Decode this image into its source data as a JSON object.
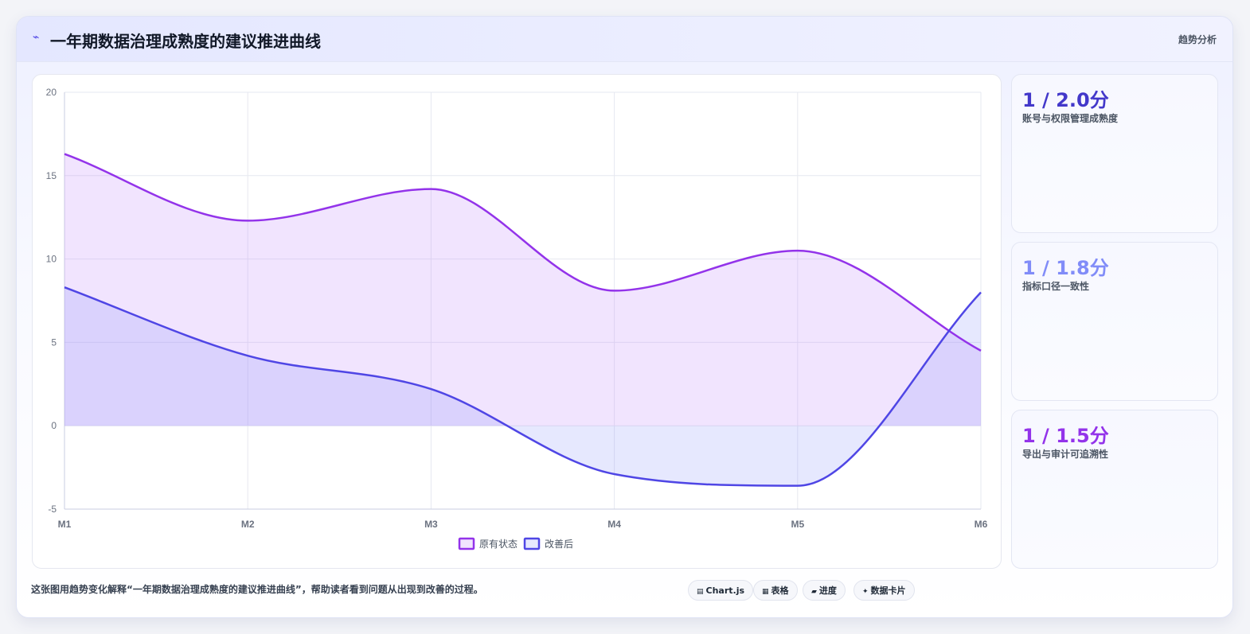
{
  "header": {
    "icon": "lightning-icon",
    "title": "一年期数据治理成熟度的建议推进曲线",
    "tag": "趋势分析"
  },
  "kpis": [
    {
      "value": "1 / 2.0分",
      "label": "账号与权限管理成熟度",
      "color": "#4338ca"
    },
    {
      "value": "1 / 1.8分",
      "label": "指标口径一致性",
      "color": "#818cf8"
    },
    {
      "value": "1 / 1.5分",
      "label": "导出与审计可追溯性",
      "color": "#9333ea"
    }
  ],
  "footer": {
    "description": "这张图用趋势变化解释“一年期数据治理成熟度的建议推进曲线”，帮助读者看到问题从出现到改善的过程。",
    "chips": [
      {
        "icon": "chart-icon",
        "glyph": "▤",
        "label": "Chart.js"
      },
      {
        "icon": "table-icon",
        "glyph": "▦",
        "label": "表格"
      },
      {
        "icon": "progress-icon",
        "glyph": "▰",
        "label": "进度"
      },
      {
        "icon": "sparkle-icon",
        "glyph": "✦",
        "label": "数据卡片"
      }
    ]
  },
  "chart_data": {
    "type": "area",
    "categories": [
      "M1",
      "M2",
      "M3",
      "M4",
      "M5",
      "M6"
    ],
    "series": [
      {
        "name": "原有状态",
        "values": [
          16.3,
          12.3,
          14.2,
          8.1,
          10.5,
          4.5
        ],
        "color": "#9333ea",
        "fill": "rgba(192,132,252,0.22)"
      },
      {
        "name": "改善后",
        "values": [
          8.3,
          4.2,
          2.2,
          -2.9,
          -3.6,
          8.0
        ],
        "color": "#4f46e5",
        "fill": "rgba(129,140,248,0.20)"
      }
    ],
    "ylim": [
      -5,
      20
    ],
    "yticks": [
      20,
      15,
      10,
      5,
      0,
      -5
    ],
    "grid": true,
    "legend": "bottom"
  }
}
